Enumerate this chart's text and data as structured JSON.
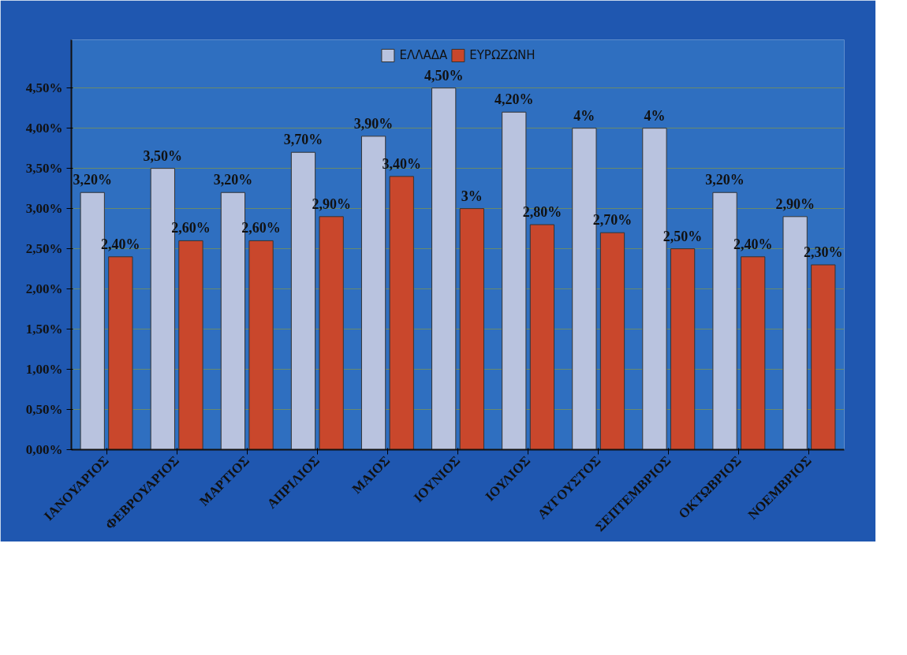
{
  "chart_data": {
    "type": "bar",
    "categories": [
      "ΙΑΝΟΥΑΡΙΟΣ",
      "ΦΕΒΡΟΥΑΡΙΟΣ",
      "ΜΑΡΤΙΟΣ",
      "ΑΠΡΙΛΙΟΣ",
      "ΜΑΙΟΣ",
      "ΙΟΥΝΙΟΣ",
      "ΙΟΥΛΙΟΣ",
      "ΑΥΓΟΥΣΤΟΣ",
      "ΣΕΠΤΕΜΒΡΙΟΣ",
      "ΟΚΤΩΒΡΙΟΣ",
      "ΝΟΕΜΒΡΙΟΣ"
    ],
    "series": [
      {
        "name": "ΕΛΛΑΔΑ",
        "color": "#b9c3df",
        "values": [
          3.2,
          3.5,
          3.2,
          3.7,
          3.9,
          4.5,
          4.2,
          4,
          4,
          3.2,
          2.9
        ],
        "value_labels": [
          "3,20%",
          "3,50%",
          "3,20%",
          "3,70%",
          "3,90%",
          "4,50%",
          "4,20%",
          "4%",
          "4%",
          "3,20%",
          "2,90%"
        ]
      },
      {
        "name": "ΕΥΡΩΖΩΝΗ",
        "color": "#c9472c",
        "values": [
          2.4,
          2.6,
          2.6,
          2.9,
          3.4,
          3,
          2.8,
          2.7,
          2.5,
          2.4,
          2.3
        ],
        "value_labels": [
          "2,40%",
          "2,60%",
          "2,60%",
          "2,90%",
          "3,40%",
          "3%",
          "2,80%",
          "2,70%",
          "2,50%",
          "2,40%",
          "2,30%"
        ]
      }
    ],
    "ylim": [
      0,
      5.1
    ],
    "yticks": [
      {
        "value": 0,
        "label": "0,00%"
      },
      {
        "value": 0.5,
        "label": "0,50%"
      },
      {
        "value": 1,
        "label": "1,00%"
      },
      {
        "value": 1.5,
        "label": "1,50%"
      },
      {
        "value": 2,
        "label": "2,00%"
      },
      {
        "value": 2.5,
        "label": "2,50%"
      },
      {
        "value": 3,
        "label": "3,00%"
      },
      {
        "value": 3.5,
        "label": "3,50%"
      },
      {
        "value": 4,
        "label": "4,00%"
      },
      {
        "value": 4.5,
        "label": "4,50%"
      }
    ],
    "grid": "y",
    "legend": "top"
  }
}
